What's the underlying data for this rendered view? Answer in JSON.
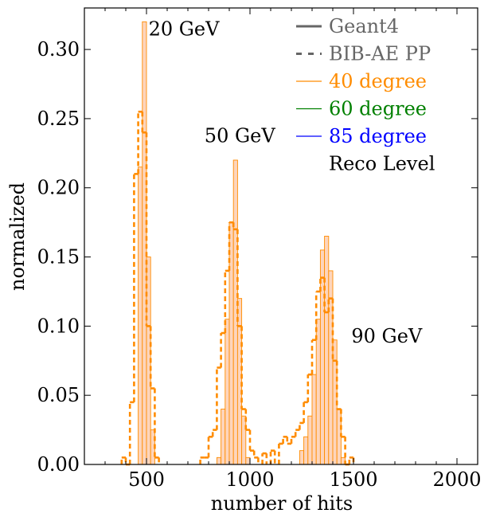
{
  "chart_data": {
    "type": "histogram",
    "xlabel": "number of hits",
    "ylabel": "normalized",
    "xlim": [
      200,
      2100
    ],
    "ylim": [
      0,
      0.33
    ],
    "x_ticks": [
      500,
      1000,
      1500,
      2000
    ],
    "y_ticks": [
      0.0,
      0.05,
      0.1,
      0.15,
      0.2,
      0.25,
      0.3
    ],
    "x_tick_labels": [
      "500",
      "1000",
      "1500",
      "2000"
    ],
    "y_tick_labels": [
      "0.00",
      "0.05",
      "0.10",
      "0.15",
      "0.20",
      "0.25",
      "0.30"
    ],
    "grid": false,
    "legend_position": "top-right",
    "legend": [
      {
        "label": "Geant4",
        "style": "solid",
        "color": "#666666"
      },
      {
        "label": "BIB-AE PP",
        "style": "dashed",
        "color": "#666666"
      },
      {
        "label": "40 degree",
        "style": "solid",
        "color": "#ff8c00"
      },
      {
        "label": "60 degree",
        "style": "solid",
        "color": "#008000"
      },
      {
        "label": "85 degree",
        "style": "solid",
        "color": "#0000ff"
      },
      {
        "label": "Reco Level",
        "style": "none",
        "color": "#000000"
      }
    ],
    "annotations": [
      {
        "text": "20 GeV",
        "x": 510,
        "y": 0.31
      },
      {
        "text": "50 GeV",
        "x": 780,
        "y": 0.233
      },
      {
        "text": "90 GeV",
        "x": 1490,
        "y": 0.088
      }
    ],
    "bin_width": 20,
    "series": [
      {
        "name": "Geant4",
        "style": "filled-step",
        "color": "#ff8c00",
        "fill": "#fdd5bc",
        "bins": [
          [
            440,
            0.0
          ],
          [
            460,
            0.215
          ],
          [
            480,
            0.32
          ],
          [
            500,
            0.15
          ],
          [
            520,
            0.025
          ],
          [
            840,
            0.005
          ],
          [
            860,
            0.04
          ],
          [
            880,
            0.105
          ],
          [
            900,
            0.175
          ],
          [
            920,
            0.22
          ],
          [
            940,
            0.12
          ],
          [
            960,
            0.035
          ],
          [
            980,
            0.005
          ],
          [
            1240,
            0.01
          ],
          [
            1260,
            0.02
          ],
          [
            1280,
            0.035
          ],
          [
            1300,
            0.065
          ],
          [
            1320,
            0.105
          ],
          [
            1340,
            0.155
          ],
          [
            1360,
            0.165
          ],
          [
            1380,
            0.14
          ],
          [
            1400,
            0.09
          ],
          [
            1420,
            0.04
          ],
          [
            1440,
            0.005
          ]
        ]
      },
      {
        "name": "BIB-AE PP",
        "style": "dashed-step",
        "color": "#ff8c00",
        "bins": [
          [
            380,
            0.005
          ],
          [
            400,
            0.0
          ],
          [
            420,
            0.045
          ],
          [
            440,
            0.21
          ],
          [
            460,
            0.255
          ],
          [
            480,
            0.24
          ],
          [
            500,
            0.1
          ],
          [
            520,
            0.055
          ],
          [
            540,
            0.005
          ],
          [
            760,
            0.005
          ],
          [
            780,
            0.005
          ],
          [
            800,
            0.02
          ],
          [
            820,
            0.025
          ],
          [
            840,
            0.07
          ],
          [
            860,
            0.095
          ],
          [
            880,
            0.14
          ],
          [
            900,
            0.175
          ],
          [
            920,
            0.17
          ],
          [
            940,
            0.1
          ],
          [
            960,
            0.04
          ],
          [
            980,
            0.025
          ],
          [
            1000,
            0.01
          ],
          [
            1020,
            0.005
          ],
          [
            1060,
            0.008
          ],
          [
            1100,
            0.01
          ],
          [
            1140,
            0.015
          ],
          [
            1160,
            0.02
          ],
          [
            1180,
            0.015
          ],
          [
            1200,
            0.02
          ],
          [
            1220,
            0.025
          ],
          [
            1240,
            0.03
          ],
          [
            1260,
            0.045
          ],
          [
            1280,
            0.065
          ],
          [
            1300,
            0.09
          ],
          [
            1320,
            0.125
          ],
          [
            1340,
            0.135
          ],
          [
            1360,
            0.11
          ],
          [
            1380,
            0.12
          ],
          [
            1400,
            0.075
          ],
          [
            1420,
            0.04
          ],
          [
            1440,
            0.02
          ],
          [
            1460,
            0.0
          ],
          [
            1480,
            0.005
          ]
        ]
      }
    ]
  }
}
